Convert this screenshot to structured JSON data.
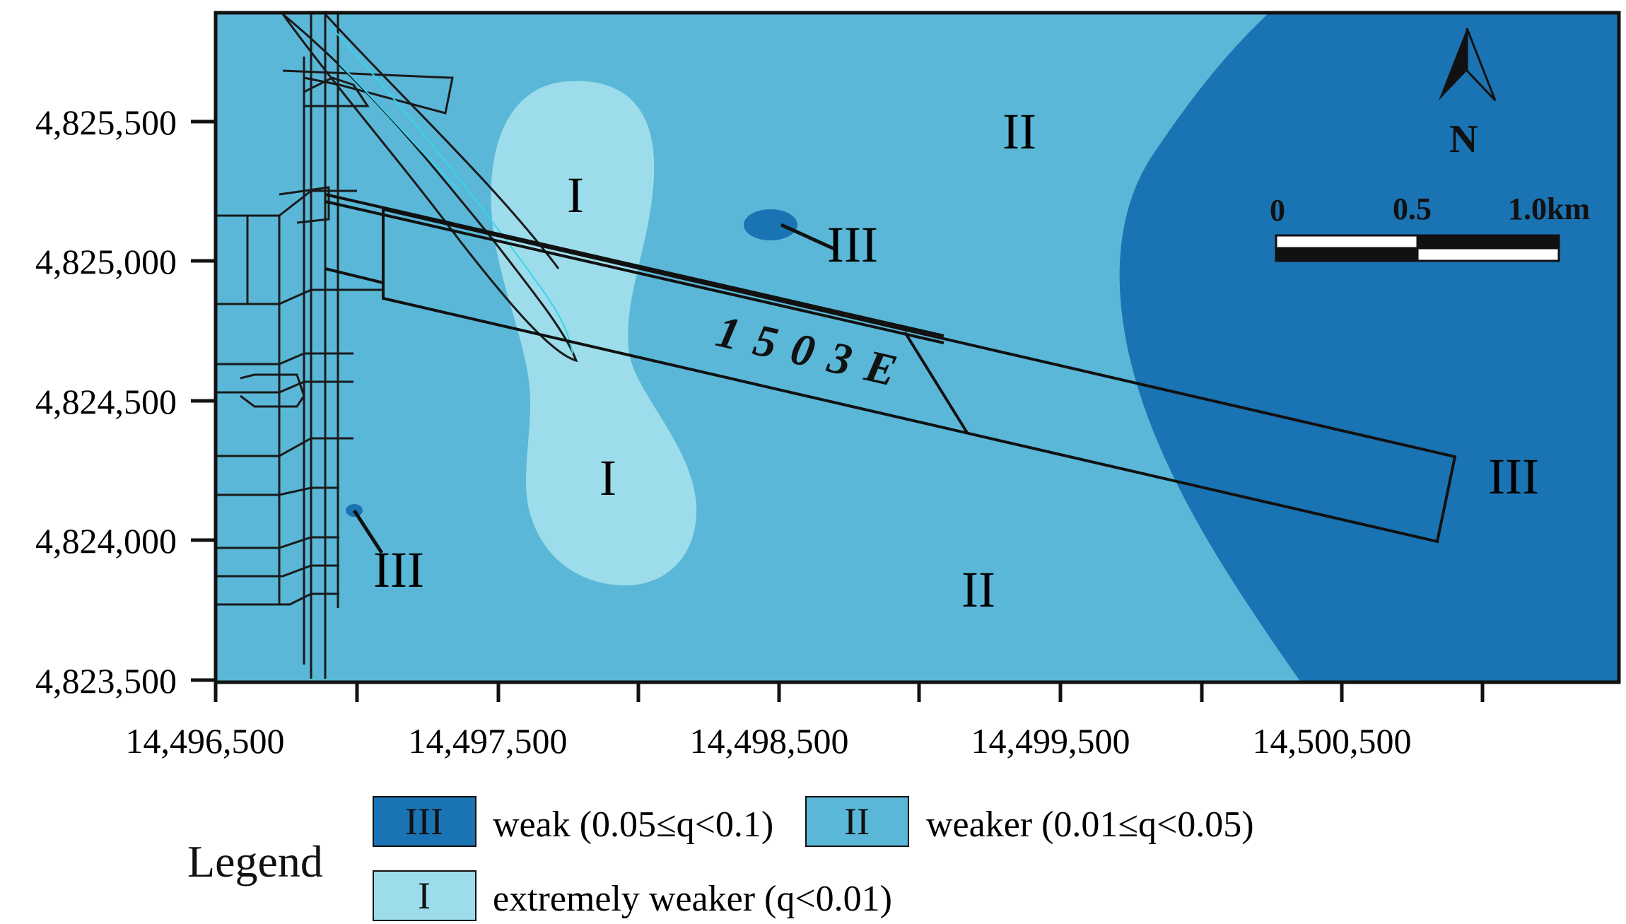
{
  "map": {
    "y_ticks": [
      "4,825,500",
      "4,825,000",
      "4,824,500",
      "4,824,000",
      "4,823,500"
    ],
    "x_ticks": [
      "14,496,500",
      "14,497,500",
      "14,498,500",
      "14,499,500",
      "14,500,500"
    ],
    "panel_label": "1503E",
    "zone_labels": {
      "top_ii": "II",
      "bottom_ii": "II",
      "upper_i": "I",
      "lower_i": "I",
      "patch_iii": "III",
      "right_iii": "III",
      "left_iii": "III"
    },
    "north_label": "N",
    "scale_labels": [
      "0",
      "0.5",
      "1.0km"
    ],
    "colors": {
      "zone_iii": "#1a73b3",
      "zone_ii": "#5ab7d7",
      "zone_i": "#9ddcea",
      "frame": "#111111"
    }
  },
  "legend": {
    "title": "Legend",
    "items": [
      {
        "symbol": "III",
        "text": "weak (0.05≤q<0.1)",
        "color": "#1a73b3"
      },
      {
        "symbol": "II",
        "text": "weaker (0.01≤q<0.05)",
        "color": "#5ab7d7"
      },
      {
        "symbol": "I",
        "text": "extremely weaker (q<0.01)",
        "color": "#9ddcea"
      }
    ]
  }
}
